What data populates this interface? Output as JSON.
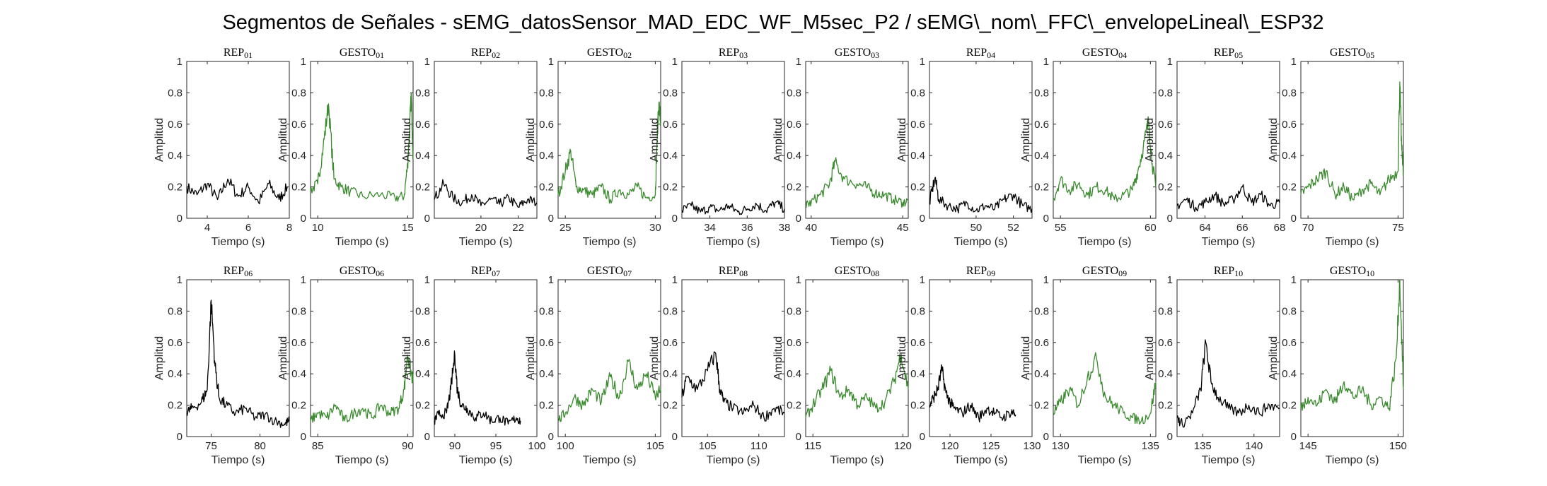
{
  "title": "Segmentos de Señales - sEMG_datosSensor_MAD_EDC_WF_M5sec_P2 / sEMG\\_nom\\_FFC\\_envelopeLineal\\_ESP32",
  "colors": {
    "rep": "#000000",
    "gesto": "#3a8a2e",
    "axis": "#262626",
    "background": "#ffffff"
  },
  "chart_data": [
    {
      "type": "line",
      "title": "REP_01",
      "xlabel": "Tiempo (s)",
      "ylabel": "Amplitud",
      "xlim": [
        3,
        8
      ],
      "ylim": [
        0,
        1
      ],
      "xticks": [
        4,
        6,
        8
      ],
      "yticks": [
        0,
        0.2,
        0.4,
        0.6,
        0.8,
        1
      ],
      "series": [
        {
          "color": "#000000",
          "x": [
            3,
            3.5,
            4,
            4.5,
            5,
            5.5,
            6,
            6.5,
            7,
            7.5,
            7.9
          ],
          "y": [
            0.2,
            0.15,
            0.22,
            0.12,
            0.25,
            0.14,
            0.2,
            0.1,
            0.22,
            0.12,
            0.2
          ]
        }
      ]
    },
    {
      "type": "line",
      "title": "GESTO_01",
      "xlabel": "Tiempo (s)",
      "ylabel": "Amplitud",
      "xlim": [
        9.6,
        15.3
      ],
      "ylim": [
        0,
        1
      ],
      "xticks": [
        10,
        15
      ],
      "yticks": [
        0,
        0.2,
        0.4,
        0.6,
        0.8,
        1
      ],
      "series": [
        {
          "color": "#3a8a2e",
          "x": [
            9.6,
            10,
            10.3,
            10.6,
            10.9,
            11.3,
            11.8,
            12.5,
            13.5,
            14.3,
            14.8,
            15,
            15.1,
            15.2,
            15.3
          ],
          "y": [
            0.18,
            0.22,
            0.45,
            0.73,
            0.25,
            0.2,
            0.17,
            0.14,
            0.15,
            0.13,
            0.14,
            0.35,
            0.55,
            0.79,
            0.4
          ]
        }
      ]
    },
    {
      "type": "line",
      "title": "REP_02",
      "xlabel": "Tiempo (s)",
      "ylabel": "Amplitud",
      "xlim": [
        17.5,
        23
      ],
      "ylim": [
        0,
        1
      ],
      "xticks": [
        20,
        22
      ],
      "yticks": [
        0,
        0.2,
        0.4,
        0.6,
        0.8,
        1
      ],
      "series": [
        {
          "color": "#000000",
          "x": [
            17.5,
            18,
            18.5,
            19,
            19.5,
            20,
            20.5,
            21,
            21.5,
            22,
            22.5,
            23
          ],
          "y": [
            0.12,
            0.22,
            0.13,
            0.1,
            0.15,
            0.08,
            0.12,
            0.09,
            0.13,
            0.07,
            0.12,
            0.1
          ]
        }
      ]
    },
    {
      "type": "line",
      "title": "GESTO_02",
      "xlabel": "Tiempo (s)",
      "ylabel": "Amplitud",
      "xlim": [
        24.6,
        30.3
      ],
      "ylim": [
        0,
        1
      ],
      "xticks": [
        25,
        30
      ],
      "yticks": [
        0,
        0.2,
        0.4,
        0.6,
        0.8,
        1
      ],
      "series": [
        {
          "color": "#3a8a2e",
          "x": [
            24.6,
            25,
            25.3,
            25.6,
            26,
            26.5,
            27,
            27.5,
            28,
            28.5,
            29,
            29.5,
            30,
            30.1,
            30.2,
            30.3
          ],
          "y": [
            0.15,
            0.3,
            0.43,
            0.2,
            0.18,
            0.15,
            0.2,
            0.12,
            0.18,
            0.15,
            0.2,
            0.13,
            0.15,
            0.5,
            0.74,
            0.6
          ]
        }
      ]
    },
    {
      "type": "line",
      "title": "REP_03",
      "xlabel": "Tiempo (s)",
      "ylabel": "Amplitud",
      "xlim": [
        32.5,
        38
      ],
      "ylim": [
        0,
        1
      ],
      "xticks": [
        34,
        36,
        38
      ],
      "yticks": [
        0,
        0.2,
        0.4,
        0.6,
        0.8,
        1
      ],
      "series": [
        {
          "color": "#000000",
          "x": [
            32.5,
            33,
            33.5,
            34,
            34.5,
            35,
            35.5,
            36,
            36.5,
            37,
            37.5,
            38
          ],
          "y": [
            0.05,
            0.08,
            0.04,
            0.07,
            0.05,
            0.08,
            0.04,
            0.06,
            0.09,
            0.05,
            0.1,
            0.06
          ]
        }
      ]
    },
    {
      "type": "line",
      "title": "GESTO_03",
      "xlabel": "Tiempo (s)",
      "ylabel": "Amplitud",
      "xlim": [
        39.7,
        45.3
      ],
      "ylim": [
        0,
        1
      ],
      "xticks": [
        40,
        45
      ],
      "yticks": [
        0,
        0.2,
        0.4,
        0.6,
        0.8,
        1
      ],
      "series": [
        {
          "color": "#3a8a2e",
          "x": [
            39.7,
            40,
            40.5,
            41,
            41.3,
            41.8,
            42.5,
            43,
            43.5,
            44,
            44.5,
            45,
            45.3
          ],
          "y": [
            0.08,
            0.1,
            0.15,
            0.22,
            0.36,
            0.25,
            0.22,
            0.2,
            0.16,
            0.15,
            0.12,
            0.1,
            0.11
          ]
        }
      ]
    },
    {
      "type": "line",
      "title": "REP_04",
      "xlabel": "Tiempo (s)",
      "ylabel": "Amplitud",
      "xlim": [
        47.5,
        53
      ],
      "ylim": [
        0,
        1
      ],
      "xticks": [
        50,
        52
      ],
      "yticks": [
        0,
        0.2,
        0.4,
        0.6,
        0.8,
        1
      ],
      "series": [
        {
          "color": "#000000",
          "x": [
            47.5,
            47.8,
            48,
            48.5,
            49,
            49.5,
            50,
            50.5,
            51,
            51.5,
            52,
            52.5,
            53
          ],
          "y": [
            0.1,
            0.26,
            0.12,
            0.08,
            0.06,
            0.1,
            0.05,
            0.08,
            0.06,
            0.12,
            0.15,
            0.08,
            0.06
          ]
        }
      ]
    },
    {
      "type": "line",
      "title": "GESTO_04",
      "xlabel": "Tiempo (s)",
      "ylabel": "Amplitud",
      "xlim": [
        54.6,
        60.3
      ],
      "ylim": [
        0,
        1
      ],
      "xticks": [
        55,
        60
      ],
      "yticks": [
        0,
        0.2,
        0.4,
        0.6,
        0.8,
        1
      ],
      "series": [
        {
          "color": "#3a8a2e",
          "x": [
            54.6,
            55,
            55.5,
            56,
            56.5,
            57,
            57.5,
            58,
            58.5,
            59,
            59.3,
            59.6,
            59.9,
            60.1,
            60.3
          ],
          "y": [
            0.12,
            0.25,
            0.18,
            0.22,
            0.15,
            0.2,
            0.18,
            0.12,
            0.15,
            0.18,
            0.3,
            0.45,
            0.62,
            0.35,
            0.2
          ]
        }
      ]
    },
    {
      "type": "line",
      "title": "REP_05",
      "xlabel": "Tiempo (s)",
      "ylabel": "Amplitud",
      "xlim": [
        62.5,
        68
      ],
      "ylim": [
        0,
        1
      ],
      "xticks": [
        64,
        66,
        68
      ],
      "yticks": [
        0,
        0.2,
        0.4,
        0.6,
        0.8,
        1
      ],
      "series": [
        {
          "color": "#000000",
          "x": [
            62.5,
            63,
            63.5,
            64,
            64.5,
            65,
            65.5,
            66,
            66.5,
            67,
            67.5,
            68
          ],
          "y": [
            0.08,
            0.12,
            0.07,
            0.1,
            0.15,
            0.09,
            0.12,
            0.2,
            0.1,
            0.15,
            0.08,
            0.1
          ]
        }
      ]
    },
    {
      "type": "line",
      "title": "GESTO_05",
      "xlabel": "Tiempo (s)",
      "ylabel": "Amplitud",
      "xlim": [
        69.6,
        75.3
      ],
      "ylim": [
        0,
        1
      ],
      "xticks": [
        70,
        75
      ],
      "yticks": [
        0,
        0.2,
        0.4,
        0.6,
        0.8,
        1
      ],
      "series": [
        {
          "color": "#3a8a2e",
          "x": [
            69.6,
            70,
            70.5,
            71,
            71.5,
            72,
            72.5,
            73,
            73.5,
            74,
            74.5,
            75,
            75.1,
            75.2,
            75.3
          ],
          "y": [
            0.15,
            0.2,
            0.25,
            0.3,
            0.15,
            0.2,
            0.12,
            0.18,
            0.22,
            0.15,
            0.25,
            0.3,
            0.87,
            0.45,
            0.3
          ]
        }
      ]
    },
    {
      "type": "line",
      "title": "REP_06",
      "xlabel": "Tiempo (s)",
      "ylabel": "Amplitud",
      "xlim": [
        72.5,
        83
      ],
      "ylim": [
        0,
        1
      ],
      "xticks": [
        75,
        80
      ],
      "yticks": [
        0,
        0.2,
        0.4,
        0.6,
        0.8,
        1
      ],
      "series": [
        {
          "color": "#000000",
          "x": [
            72.5,
            73,
            74,
            74.6,
            75,
            75.4,
            75.8,
            76.5,
            77.5,
            78.5,
            79.5,
            80.5,
            81.5,
            82.5,
            83
          ],
          "y": [
            0.15,
            0.18,
            0.22,
            0.3,
            0.87,
            0.45,
            0.25,
            0.2,
            0.15,
            0.18,
            0.12,
            0.14,
            0.1,
            0.08,
            0.1
          ]
        }
      ]
    },
    {
      "type": "line",
      "title": "GESTO_06",
      "xlabel": "Tiempo (s)",
      "ylabel": "Amplitud",
      "xlim": [
        84.6,
        90.3
      ],
      "ylim": [
        0,
        1
      ],
      "xticks": [
        85,
        90
      ],
      "yticks": [
        0,
        0.2,
        0.4,
        0.6,
        0.8,
        1
      ],
      "series": [
        {
          "color": "#3a8a2e",
          "x": [
            84.6,
            85,
            85.5,
            86,
            86.5,
            87,
            87.5,
            88,
            88.5,
            89,
            89.5,
            89.8,
            90,
            90.2,
            90.3
          ],
          "y": [
            0.1,
            0.15,
            0.12,
            0.2,
            0.1,
            0.15,
            0.18,
            0.12,
            0.2,
            0.15,
            0.18,
            0.3,
            0.52,
            0.4,
            0.35
          ]
        }
      ]
    },
    {
      "type": "line",
      "title": "REP_07",
      "xlabel": "Tiempo (s)",
      "ylabel": "Amplitud",
      "xlim": [
        87.5,
        100
      ],
      "ylim": [
        0,
        1
      ],
      "xticks": [
        90,
        95,
        100
      ],
      "yticks": [
        0,
        0.2,
        0.4,
        0.6,
        0.8,
        1
      ],
      "series": [
        {
          "color": "#000000",
          "x": [
            87.5,
            88,
            89,
            89.5,
            90,
            90.3,
            90.8,
            91.5,
            92.5,
            93.5,
            94.5,
            95.5,
            96.5,
            97.5,
            98
          ],
          "y": [
            0.1,
            0.14,
            0.15,
            0.3,
            0.52,
            0.3,
            0.2,
            0.18,
            0.12,
            0.15,
            0.1,
            0.12,
            0.08,
            0.12,
            0.1
          ]
        }
      ]
    },
    {
      "type": "line",
      "title": "GESTO_07",
      "xlabel": "Tiempo (s)",
      "ylabel": "Amplitud",
      "xlim": [
        99.6,
        105.3
      ],
      "ylim": [
        0,
        1
      ],
      "xticks": [
        100,
        105
      ],
      "yticks": [
        0,
        0.2,
        0.4,
        0.6,
        0.8,
        1
      ],
      "series": [
        {
          "color": "#3a8a2e",
          "x": [
            99.6,
            100,
            100.5,
            101,
            101.5,
            102,
            102.5,
            103,
            103.5,
            104,
            104.5,
            105,
            105.3
          ],
          "y": [
            0.1,
            0.15,
            0.25,
            0.2,
            0.3,
            0.22,
            0.38,
            0.25,
            0.48,
            0.3,
            0.4,
            0.25,
            0.3
          ]
        }
      ]
    },
    {
      "type": "line",
      "title": "REP_08",
      "xlabel": "Tiempo (s)",
      "ylabel": "Amplitud",
      "xlim": [
        102.5,
        112.5
      ],
      "ylim": [
        0,
        1
      ],
      "xticks": [
        105,
        110
      ],
      "yticks": [
        0,
        0.2,
        0.4,
        0.6,
        0.8,
        1
      ],
      "series": [
        {
          "color": "#000000",
          "x": [
            102.5,
            103,
            104,
            105,
            105.8,
            106.2,
            106.6,
            107.5,
            108.5,
            109.5,
            110.5,
            111.5,
            112.5
          ],
          "y": [
            0.25,
            0.38,
            0.3,
            0.42,
            0.53,
            0.3,
            0.22,
            0.18,
            0.15,
            0.2,
            0.12,
            0.18,
            0.15
          ]
        }
      ]
    },
    {
      "type": "line",
      "title": "GESTO_08",
      "xlabel": "Tiempo (s)",
      "ylabel": "Amplitud",
      "xlim": [
        114.6,
        120.3
      ],
      "ylim": [
        0,
        1
      ],
      "xticks": [
        115,
        120
      ],
      "yticks": [
        0,
        0.2,
        0.4,
        0.6,
        0.8,
        1
      ],
      "series": [
        {
          "color": "#3a8a2e",
          "x": [
            114.6,
            115,
            115.5,
            116,
            116.5,
            117,
            117.5,
            118,
            118.5,
            119,
            119.5,
            119.9,
            120.3
          ],
          "y": [
            0.12,
            0.2,
            0.3,
            0.42,
            0.25,
            0.3,
            0.2,
            0.25,
            0.18,
            0.22,
            0.35,
            0.53,
            0.3
          ]
        }
      ]
    },
    {
      "type": "line",
      "title": "REP_09",
      "xlabel": "Tiempo (s)",
      "ylabel": "Amplitud",
      "xlim": [
        117.5,
        130
      ],
      "ylim": [
        0,
        1
      ],
      "xticks": [
        120,
        125,
        130
      ],
      "yticks": [
        0,
        0.2,
        0.4,
        0.6,
        0.8,
        1
      ],
      "series": [
        {
          "color": "#000000",
          "x": [
            117.5,
            118,
            118.5,
            119,
            119.5,
            120,
            120.5,
            121.5,
            122.5,
            123.5,
            124.5,
            125.5,
            126.5,
            127.5,
            128
          ],
          "y": [
            0.2,
            0.25,
            0.3,
            0.43,
            0.28,
            0.22,
            0.18,
            0.15,
            0.2,
            0.12,
            0.18,
            0.15,
            0.12,
            0.16,
            0.14
          ]
        }
      ]
    },
    {
      "type": "line",
      "title": "GESTO_09",
      "xlabel": "Tiempo (s)",
      "ylabel": "Amplitud",
      "xlim": [
        129.6,
        135.3
      ],
      "ylim": [
        0,
        1
      ],
      "xticks": [
        130,
        135
      ],
      "yticks": [
        0,
        0.2,
        0.4,
        0.6,
        0.8,
        1
      ],
      "series": [
        {
          "color": "#3a8a2e",
          "x": [
            129.6,
            130,
            130.5,
            131,
            131.5,
            132,
            132.5,
            133,
            133.5,
            134,
            134.5,
            135,
            135.3
          ],
          "y": [
            0.15,
            0.22,
            0.3,
            0.2,
            0.38,
            0.5,
            0.25,
            0.2,
            0.15,
            0.12,
            0.1,
            0.15,
            0.35
          ]
        }
      ]
    },
    {
      "type": "line",
      "title": "REP_10",
      "xlabel": "Tiempo (s)",
      "ylabel": "Amplitud",
      "xlim": [
        132.5,
        142.5
      ],
      "ylim": [
        0,
        1
      ],
      "xticks": [
        135,
        140
      ],
      "yticks": [
        0,
        0.2,
        0.4,
        0.6,
        0.8,
        1
      ],
      "series": [
        {
          "color": "#000000",
          "x": [
            132.5,
            133,
            134,
            134.8,
            135.3,
            135.8,
            136.5,
            137.5,
            138.5,
            139.5,
            140.5,
            141.5,
            142.5
          ],
          "y": [
            0.12,
            0.08,
            0.15,
            0.3,
            0.6,
            0.35,
            0.25,
            0.18,
            0.15,
            0.2,
            0.15,
            0.2,
            0.18
          ]
        }
      ]
    },
    {
      "type": "line",
      "title": "GESTO_10",
      "xlabel": "Tiempo (s)",
      "ylabel": "Amplitud",
      "xlim": [
        144.6,
        150.3
      ],
      "ylim": [
        0,
        1
      ],
      "xticks": [
        145,
        150
      ],
      "yticks": [
        0,
        0.2,
        0.4,
        0.6,
        0.8,
        1
      ],
      "series": [
        {
          "color": "#3a8a2e",
          "x": [
            144.6,
            145,
            145.5,
            146,
            146.5,
            147,
            147.5,
            148,
            148.5,
            149,
            149.5,
            149.9,
            150.1,
            150.3
          ],
          "y": [
            0.18,
            0.25,
            0.2,
            0.3,
            0.22,
            0.35,
            0.25,
            0.3,
            0.2,
            0.25,
            0.18,
            0.5,
            1.0,
            0.3
          ]
        }
      ]
    }
  ]
}
